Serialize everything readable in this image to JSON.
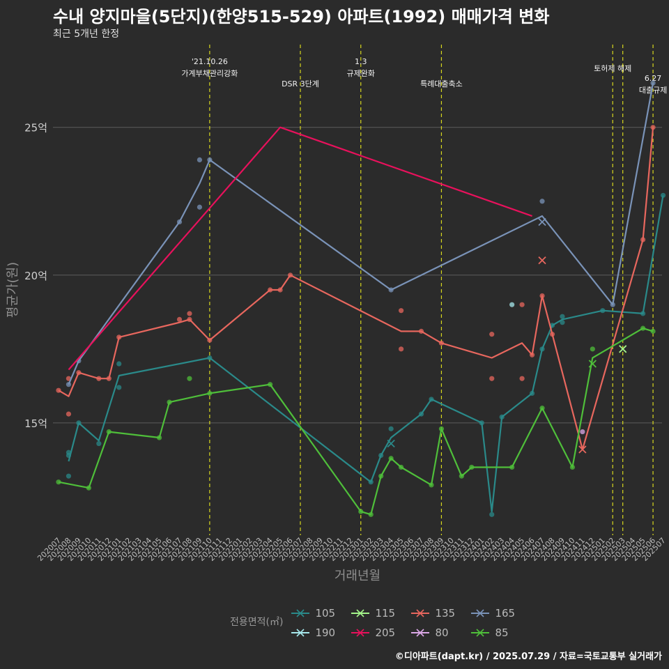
{
  "title": "수내 양지마을(5단지)(한양515-529) 아파트(1992) 매매가격 변화",
  "subtitle": "최근 5개년 한정",
  "caption": "©디아파트(dapt.kr) / 2025.07.29 / 자료=국토교통부 실거래가",
  "chart_data": {
    "type": "line",
    "xlabel": "거래년월",
    "ylabel": "평균가(원)",
    "ylim": [
      11.2,
      27.8
    ],
    "yticks": [
      {
        "v": 15,
        "label": "15억"
      },
      {
        "v": 20,
        "label": "20억"
      },
      {
        "v": 25,
        "label": "25억"
      }
    ],
    "x_categories": [
      "202007",
      "202008",
      "202009",
      "202010",
      "202011",
      "202012",
      "202101",
      "202102",
      "202103",
      "202104",
      "202105",
      "202106",
      "202107",
      "202108",
      "202109",
      "202110",
      "202111",
      "202112",
      "202201",
      "202202",
      "202203",
      "202204",
      "202205",
      "202206",
      "202207",
      "202208",
      "202209",
      "202210",
      "202211",
      "202212",
      "202301",
      "202302",
      "202303",
      "202304",
      "202305",
      "202306",
      "202307",
      "202308",
      "202309",
      "202310",
      "202311",
      "202312",
      "202401",
      "202402",
      "202403",
      "202404",
      "202405",
      "202406",
      "202407",
      "202408",
      "202409",
      "202410",
      "202411",
      "202412",
      "202501",
      "202502",
      "202503",
      "202504",
      "202505",
      "202506",
      "202507"
    ],
    "legend_title": "전용면적(㎡)",
    "legend": [
      "105",
      "115",
      "135",
      "165",
      "190",
      "205",
      "80",
      "85"
    ],
    "colors": {
      "105": "#2a8a8a",
      "115": "#a4f58a",
      "135": "#e8675e",
      "165": "#7a93b8",
      "190": "#a6e8ec",
      "205": "#e8115c",
      "80": "#dca8e8",
      "85": "#4fbf3a"
    },
    "annotations": [
      {
        "x": "202110",
        "lines": [
          "'21.10.26",
          "가계부채관리강화"
        ]
      },
      {
        "x": "202207",
        "lines": [
          "DSR 3단계"
        ]
      },
      {
        "x": "202301",
        "lines": [
          "1.3",
          "규제완화"
        ]
      },
      {
        "x": "202309",
        "lines": [
          "특례대출축소"
        ]
      },
      {
        "x": "202502",
        "lines": [
          "토허제 해제"
        ]
      },
      {
        "x": "202503",
        "lines": [
          ""
        ]
      },
      {
        "x": "202506",
        "lines": [
          "6.27",
          "대출규제"
        ]
      }
    ],
    "series": [
      {
        "name": "105",
        "line": [
          [
            "202008",
            13.7
          ],
          [
            "202009",
            15.0
          ],
          [
            "202011",
            14.4
          ],
          [
            "202101",
            16.6
          ],
          [
            "202110",
            17.2
          ],
          [
            "202302",
            13.0
          ],
          [
            "202303",
            13.9
          ],
          [
            "202304",
            14.5
          ],
          [
            "202307",
            15.3
          ],
          [
            "202308",
            15.8
          ],
          [
            "202401",
            15.0
          ],
          [
            "202402",
            12.0
          ],
          [
            "202403",
            15.2
          ],
          [
            "202406",
            16.0
          ],
          [
            "202407",
            17.5
          ],
          [
            "202408",
            18.3
          ],
          [
            "202409",
            18.5
          ],
          [
            "202501",
            18.8
          ],
          [
            "202505",
            18.7
          ],
          [
            "202507",
            22.7
          ]
        ],
        "points": [
          [
            "202008",
            13.9
          ],
          [
            "202008",
            14.0
          ],
          [
            "202008",
            13.2
          ],
          [
            "202009",
            15.0
          ],
          [
            "202011",
            14.3
          ],
          [
            "202101",
            16.2
          ],
          [
            "202101",
            17.0
          ],
          [
            "202110",
            17.2
          ],
          [
            "202302",
            13.0
          ],
          [
            "202303",
            13.9
          ],
          [
            "202304",
            14.8
          ],
          [
            "202307",
            15.3
          ],
          [
            "202308",
            15.8
          ],
          [
            "202401",
            15.0
          ],
          [
            "202402",
            11.9
          ],
          [
            "202403",
            15.2
          ],
          [
            "202406",
            16.0
          ],
          [
            "202407",
            17.5
          ],
          [
            "202408",
            18.3
          ],
          [
            "202409",
            18.4
          ],
          [
            "202409",
            18.6
          ],
          [
            "202501",
            18.8
          ],
          [
            "202505",
            18.7
          ],
          [
            "202507",
            22.7
          ]
        ],
        "crosses": [
          [
            "202304",
            14.3
          ]
        ]
      },
      {
        "name": "135",
        "line": [
          [
            "202007",
            16.1
          ],
          [
            "202008",
            15.9
          ],
          [
            "202009",
            16.7
          ],
          [
            "202011",
            16.5
          ],
          [
            "202012",
            16.5
          ],
          [
            "202101",
            17.9
          ],
          [
            "202107",
            18.4
          ],
          [
            "202108",
            18.5
          ],
          [
            "202110",
            17.8
          ],
          [
            "202204",
            19.5
          ],
          [
            "202205",
            19.5
          ],
          [
            "202206",
            20.0
          ],
          [
            "202305",
            18.1
          ],
          [
            "202307",
            18.1
          ],
          [
            "202309",
            17.7
          ],
          [
            "202402",
            17.2
          ],
          [
            "202405",
            17.7
          ],
          [
            "202406",
            17.3
          ],
          [
            "202407",
            19.3
          ],
          [
            "202408",
            18.0
          ],
          [
            "202411",
            14.1
          ],
          [
            "202505",
            21.2
          ],
          [
            "202506",
            25.0
          ]
        ],
        "points": [
          [
            "202007",
            16.1
          ],
          [
            "202008",
            15.3
          ],
          [
            "202008",
            16.5
          ],
          [
            "202009",
            16.7
          ],
          [
            "202011",
            16.5
          ],
          [
            "202012",
            16.5
          ],
          [
            "202101",
            17.9
          ],
          [
            "202107",
            18.5
          ],
          [
            "202108",
            18.7
          ],
          [
            "202108",
            18.5
          ],
          [
            "202110",
            17.8
          ],
          [
            "202204",
            19.5
          ],
          [
            "202205",
            19.5
          ],
          [
            "202206",
            20.0
          ],
          [
            "202305",
            18.8
          ],
          [
            "202305",
            17.5
          ],
          [
            "202307",
            18.1
          ],
          [
            "202309",
            17.7
          ],
          [
            "202402",
            18.0
          ],
          [
            "202402",
            16.5
          ],
          [
            "202405",
            19.0
          ],
          [
            "202405",
            16.5
          ],
          [
            "202406",
            17.3
          ],
          [
            "202407",
            19.3
          ],
          [
            "202408",
            18.0
          ],
          [
            "202505",
            21.2
          ],
          [
            "202506",
            25.0
          ]
        ],
        "crosses": [
          [
            "202407",
            20.5
          ],
          [
            "202411",
            14.1
          ]
        ]
      },
      {
        "name": "165",
        "line": [
          [
            "202008",
            16.3
          ],
          [
            "202009",
            17.1
          ],
          [
            "202107",
            21.8
          ],
          [
            "202109",
            23.1
          ],
          [
            "202110",
            23.9
          ],
          [
            "202304",
            19.5
          ],
          [
            "202407",
            22.0
          ],
          [
            "202502",
            19.0
          ],
          [
            "202506",
            26.5
          ]
        ],
        "points": [
          [
            "202008",
            16.3
          ],
          [
            "202009",
            17.1
          ],
          [
            "202107",
            21.8
          ],
          [
            "202109",
            23.9
          ],
          [
            "202109",
            22.3
          ],
          [
            "202110",
            23.9
          ],
          [
            "202304",
            19.5
          ],
          [
            "202407",
            22.5
          ],
          [
            "202502",
            19.0
          ],
          [
            "202506",
            26.5
          ]
        ],
        "crosses": [
          [
            "202407",
            21.8
          ]
        ]
      },
      {
        "name": "205",
        "line": [
          [
            "202008",
            16.8
          ],
          [
            "202205",
            25.0
          ],
          [
            "202406",
            22.0
          ]
        ],
        "points": [],
        "crosses": []
      },
      {
        "name": "190",
        "line": [],
        "points": [
          [
            "202404",
            19.0
          ]
        ],
        "crosses": []
      },
      {
        "name": "80",
        "line": [],
        "points": [
          [
            "202411",
            14.7
          ]
        ],
        "crosses": []
      },
      {
        "name": "115",
        "line": [],
        "points": [],
        "crosses": [
          [
            "202503",
            17.5
          ]
        ]
      },
      {
        "name": "85",
        "line": [
          [
            "202007",
            13.0
          ],
          [
            "202010",
            12.8
          ],
          [
            "202012",
            14.7
          ],
          [
            "202105",
            14.5
          ],
          [
            "202106",
            15.7
          ],
          [
            "202110",
            16.0
          ],
          [
            "202204",
            16.3
          ],
          [
            "202301",
            12.0
          ],
          [
            "202302",
            11.9
          ],
          [
            "202303",
            13.2
          ],
          [
            "202304",
            13.8
          ],
          [
            "202305",
            13.5
          ],
          [
            "202308",
            12.9
          ],
          [
            "202309",
            14.8
          ],
          [
            "202311",
            13.2
          ],
          [
            "202312",
            13.5
          ],
          [
            "202404",
            13.5
          ],
          [
            "202407",
            15.5
          ],
          [
            "202410",
            13.5
          ],
          [
            "202412",
            17.2
          ],
          [
            "202505",
            18.2
          ],
          [
            "202506",
            18.1
          ]
        ],
        "points": [
          [
            "202007",
            13.0
          ],
          [
            "202010",
            12.8
          ],
          [
            "202012",
            14.7
          ],
          [
            "202105",
            14.5
          ],
          [
            "202106",
            15.7
          ],
          [
            "202108",
            16.5
          ],
          [
            "202110",
            16.0
          ],
          [
            "202204",
            16.3
          ],
          [
            "202301",
            12.0
          ],
          [
            "202302",
            11.9
          ],
          [
            "202303",
            13.2
          ],
          [
            "202304",
            13.8
          ],
          [
            "202305",
            13.5
          ],
          [
            "202308",
            12.9
          ],
          [
            "202309",
            14.8
          ],
          [
            "202311",
            13.2
          ],
          [
            "202312",
            13.5
          ],
          [
            "202404",
            13.5
          ],
          [
            "202407",
            15.5
          ],
          [
            "202410",
            13.5
          ],
          [
            "202412",
            17.5
          ],
          [
            "202505",
            18.2
          ],
          [
            "202506",
            18.1
          ]
        ],
        "crosses": [
          [
            "202412",
            17.0
          ]
        ]
      }
    ]
  }
}
